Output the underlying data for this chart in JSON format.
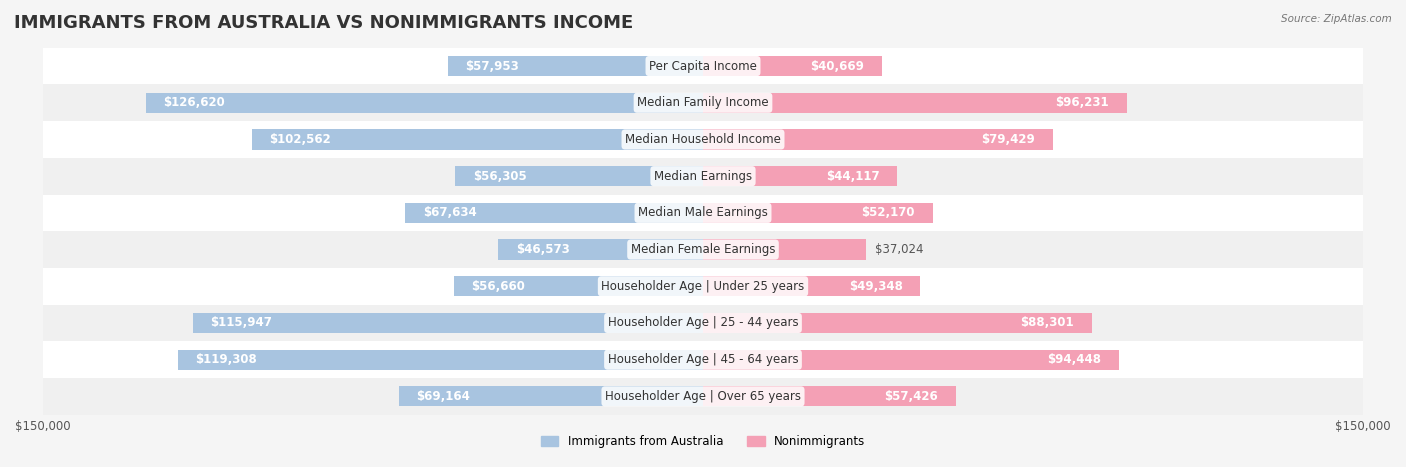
{
  "title": "IMMIGRANTS FROM AUSTRALIA VS NONIMMIGRANTS INCOME",
  "source": "Source: ZipAtlas.com",
  "categories": [
    "Per Capita Income",
    "Median Family Income",
    "Median Household Income",
    "Median Earnings",
    "Median Male Earnings",
    "Median Female Earnings",
    "Householder Age | Under 25 years",
    "Householder Age | 25 - 44 years",
    "Householder Age | 45 - 64 years",
    "Householder Age | Over 65 years"
  ],
  "immigrants": [
    57953,
    126620,
    102562,
    56305,
    67634,
    46573,
    56660,
    115947,
    119308,
    69164
  ],
  "nonimmigrants": [
    40669,
    96231,
    79429,
    44117,
    52170,
    37024,
    49348,
    88301,
    94448,
    57426
  ],
  "immigrant_color": "#a8c4e0",
  "nonimmigrant_color": "#f4a0b5",
  "immigrant_dark_color": "#5b8ec4",
  "nonimmigrant_dark_color": "#e8607a",
  "bar_height": 0.55,
  "xlim": 150000,
  "bg_color": "#f5f5f5",
  "row_colors": [
    "#ffffff",
    "#f0f0f0"
  ],
  "legend_immigrant_label": "Immigrants from Australia",
  "legend_nonimmigrant_label": "Nonimmigrants",
  "title_fontsize": 13,
  "label_fontsize": 8.5,
  "tick_fontsize": 8.5
}
